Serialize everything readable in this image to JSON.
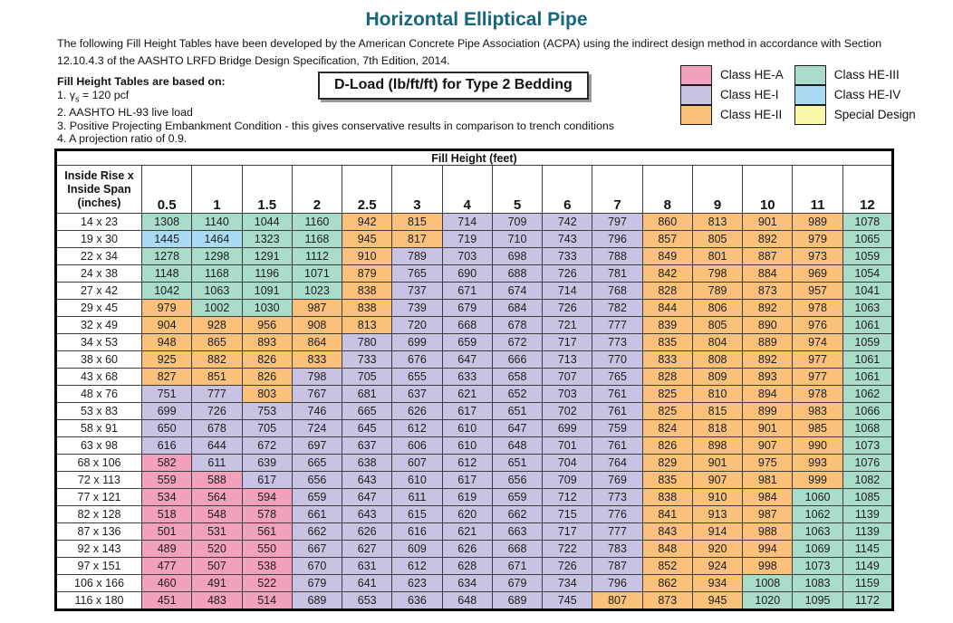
{
  "page": {
    "title": "Horizontal Elliptical Pipe",
    "intro": "The following Fill Height Tables have been developed by the American Concrete Pipe Association (ACPA) using the indirect design method in accordance with Section 12.10.4.3 of the AASHTO LRFD Bridge Design Specification, 7th Edition, 2014."
  },
  "notes": {
    "heading": "Fill Height Tables are based on:",
    "item1": {
      "pre": "1.  γ",
      "sub": "s",
      "post": " = 120 pcf"
    },
    "items": [
      "2.  AASHTO HL-93 live load",
      "3.  Positive Projecting Embankment Condition - this gives conservative results in comparison to trench conditions",
      "4.  A projection ratio of 0.9."
    ]
  },
  "dload_box": {
    "text": "D-Load (lb/ft/ft) for Type 2 Bedding"
  },
  "legend": {
    "columns": [
      [
        {
          "code": "A",
          "label": "Class HE-A"
        },
        {
          "code": "I",
          "label": "Class HE-I"
        },
        {
          "code": "II",
          "label": "Class HE-II"
        }
      ],
      [
        {
          "code": "III",
          "label": "Class HE-III"
        },
        {
          "code": "IV",
          "label": "Class HE-IV"
        },
        {
          "code": "SD",
          "label": "Special Design"
        }
      ]
    ]
  },
  "chart_data": {
    "type": "table",
    "title": "D-Load (lb/ft/ft) for Type 2 Bedding",
    "group_header": "Fill Height (feet)",
    "row_header_label": [
      "Inside Rise x",
      "Inside Span",
      "(inches)"
    ],
    "row_header_units": "inches",
    "columns": [
      "0.5",
      "1",
      "1.5",
      "2",
      "2.5",
      "3",
      "4",
      "5",
      "6",
      "7",
      "8",
      "9",
      "10",
      "11",
      "12"
    ],
    "class_map": {
      "A": "#F2A1BC",
      "I": "#C8C3E2",
      "II": "#F9C179",
      "III": "#A9DCC9",
      "IV": "#AADAF4",
      "SD": "#FBF7AA"
    },
    "rows": [
      {
        "size": "14 x 23",
        "values": [
          1308,
          1140,
          1044,
          1160,
          942,
          815,
          714,
          709,
          742,
          797,
          860,
          813,
          901,
          989,
          1078
        ],
        "classes": [
          "III",
          "III",
          "III",
          "III",
          "II",
          "II",
          "I",
          "I",
          "I",
          "I",
          "II",
          "II",
          "II",
          "II",
          "III"
        ]
      },
      {
        "size": "19 x 30",
        "values": [
          1445,
          1464,
          1323,
          1168,
          945,
          817,
          719,
          710,
          743,
          796,
          857,
          805,
          892,
          979,
          1065
        ],
        "classes": [
          "IV",
          "IV",
          "III",
          "III",
          "II",
          "II",
          "I",
          "I",
          "I",
          "I",
          "II",
          "II",
          "II",
          "II",
          "III"
        ]
      },
      {
        "size": "22 x 34",
        "values": [
          1278,
          1298,
          1291,
          1112,
          910,
          789,
          703,
          698,
          733,
          788,
          849,
          801,
          887,
          973,
          1059
        ],
        "classes": [
          "III",
          "III",
          "III",
          "III",
          "II",
          "I",
          "I",
          "I",
          "I",
          "I",
          "II",
          "II",
          "II",
          "II",
          "III"
        ]
      },
      {
        "size": "24 x 38",
        "values": [
          1148,
          1168,
          1196,
          1071,
          879,
          765,
          690,
          688,
          726,
          781,
          842,
          798,
          884,
          969,
          1054
        ],
        "classes": [
          "III",
          "III",
          "III",
          "III",
          "II",
          "I",
          "I",
          "I",
          "I",
          "I",
          "II",
          "II",
          "II",
          "II",
          "III"
        ]
      },
      {
        "size": "27 x 42",
        "values": [
          1042,
          1063,
          1091,
          1023,
          838,
          737,
          671,
          674,
          714,
          768,
          828,
          789,
          873,
          957,
          1041
        ],
        "classes": [
          "III",
          "III",
          "III",
          "III",
          "II",
          "I",
          "I",
          "I",
          "I",
          "I",
          "II",
          "II",
          "II",
          "II",
          "III"
        ]
      },
      {
        "size": "29 x 45",
        "values": [
          979,
          1002,
          1030,
          987,
          838,
          739,
          679,
          684,
          726,
          782,
          844,
          806,
          892,
          978,
          1063
        ],
        "classes": [
          "II",
          "III",
          "III",
          "II",
          "II",
          "I",
          "I",
          "I",
          "I",
          "I",
          "II",
          "II",
          "II",
          "II",
          "III"
        ]
      },
      {
        "size": "32 x 49",
        "values": [
          904,
          928,
          956,
          908,
          813,
          720,
          668,
          678,
          721,
          777,
          839,
          805,
          890,
          976,
          1061
        ],
        "classes": [
          "II",
          "II",
          "II",
          "II",
          "II",
          "I",
          "I",
          "I",
          "I",
          "I",
          "II",
          "II",
          "II",
          "II",
          "III"
        ]
      },
      {
        "size": "34 x 53",
        "values": [
          948,
          865,
          893,
          864,
          780,
          699,
          659,
          672,
          717,
          773,
          835,
          804,
          889,
          974,
          1059
        ],
        "classes": [
          "II",
          "II",
          "II",
          "II",
          "I",
          "I",
          "I",
          "I",
          "I",
          "I",
          "II",
          "II",
          "II",
          "II",
          "III"
        ]
      },
      {
        "size": "38 x 60",
        "values": [
          925,
          882,
          826,
          833,
          733,
          676,
          647,
          666,
          713,
          770,
          833,
          808,
          892,
          977,
          1061
        ],
        "classes": [
          "II",
          "II",
          "II",
          "II",
          "I",
          "I",
          "I",
          "I",
          "I",
          "I",
          "II",
          "II",
          "II",
          "II",
          "III"
        ]
      },
      {
        "size": "43 x 68",
        "values": [
          827,
          851,
          826,
          798,
          705,
          655,
          633,
          658,
          707,
          765,
          828,
          809,
          893,
          977,
          1061
        ],
        "classes": [
          "II",
          "II",
          "II",
          "I",
          "I",
          "I",
          "I",
          "I",
          "I",
          "I",
          "II",
          "II",
          "II",
          "II",
          "III"
        ]
      },
      {
        "size": "48 x 76",
        "values": [
          751,
          777,
          803,
          767,
          681,
          637,
          621,
          652,
          703,
          761,
          825,
          810,
          894,
          978,
          1062
        ],
        "classes": [
          "I",
          "I",
          "II",
          "I",
          "I",
          "I",
          "I",
          "I",
          "I",
          "I",
          "II",
          "II",
          "II",
          "II",
          "III"
        ]
      },
      {
        "size": "53 x 83",
        "values": [
          699,
          726,
          753,
          746,
          665,
          626,
          617,
          651,
          702,
          761,
          825,
          815,
          899,
          983,
          1066
        ],
        "classes": [
          "I",
          "I",
          "I",
          "I",
          "I",
          "I",
          "I",
          "I",
          "I",
          "I",
          "II",
          "II",
          "II",
          "II",
          "III"
        ]
      },
      {
        "size": "58 x 91",
        "values": [
          650,
          678,
          705,
          724,
          645,
          612,
          610,
          647,
          699,
          759,
          824,
          818,
          901,
          985,
          1068
        ],
        "classes": [
          "I",
          "I",
          "I",
          "I",
          "I",
          "I",
          "I",
          "I",
          "I",
          "I",
          "II",
          "II",
          "II",
          "II",
          "III"
        ]
      },
      {
        "size": "63 x 98",
        "values": [
          616,
          644,
          672,
          697,
          637,
          606,
          610,
          648,
          701,
          761,
          826,
          898,
          907,
          990,
          1073
        ],
        "classes": [
          "I",
          "I",
          "I",
          "I",
          "I",
          "I",
          "I",
          "I",
          "I",
          "I",
          "II",
          "II",
          "II",
          "II",
          "III"
        ]
      },
      {
        "size": "68 x 106",
        "values": [
          582,
          611,
          639,
          665,
          638,
          607,
          612,
          651,
          704,
          764,
          829,
          901,
          975,
          993,
          1076
        ],
        "classes": [
          "A",
          "I",
          "I",
          "I",
          "I",
          "I",
          "I",
          "I",
          "I",
          "I",
          "II",
          "II",
          "II",
          "II",
          "III"
        ]
      },
      {
        "size": "72 x 113",
        "values": [
          559,
          588,
          617,
          656,
          643,
          610,
          617,
          656,
          709,
          769,
          835,
          907,
          981,
          999,
          1082
        ],
        "classes": [
          "A",
          "A",
          "I",
          "I",
          "I",
          "I",
          "I",
          "I",
          "I",
          "I",
          "II",
          "II",
          "II",
          "II",
          "III"
        ]
      },
      {
        "size": "77 x 121",
        "values": [
          534,
          564,
          594,
          659,
          647,
          611,
          619,
          659,
          712,
          773,
          838,
          910,
          984,
          1060,
          1085
        ],
        "classes": [
          "A",
          "A",
          "A",
          "I",
          "I",
          "I",
          "I",
          "I",
          "I",
          "I",
          "II",
          "II",
          "II",
          "III",
          "III"
        ]
      },
      {
        "size": "82 x 128",
        "values": [
          518,
          548,
          578,
          661,
          643,
          615,
          620,
          662,
          715,
          776,
          841,
          913,
          987,
          1062,
          1139
        ],
        "classes": [
          "A",
          "A",
          "A",
          "I",
          "I",
          "I",
          "I",
          "I",
          "I",
          "I",
          "II",
          "II",
          "II",
          "III",
          "III"
        ]
      },
      {
        "size": "87 x 136",
        "values": [
          501,
          531,
          561,
          662,
          626,
          616,
          621,
          663,
          717,
          777,
          843,
          914,
          988,
          1063,
          1139
        ],
        "classes": [
          "A",
          "A",
          "A",
          "I",
          "I",
          "I",
          "I",
          "I",
          "I",
          "I",
          "II",
          "II",
          "II",
          "III",
          "III"
        ]
      },
      {
        "size": "92 x 143",
        "values": [
          489,
          520,
          550,
          667,
          627,
          609,
          626,
          668,
          722,
          783,
          848,
          920,
          994,
          1069,
          1145
        ],
        "classes": [
          "A",
          "A",
          "A",
          "I",
          "I",
          "I",
          "I",
          "I",
          "I",
          "I",
          "II",
          "II",
          "II",
          "III",
          "III"
        ]
      },
      {
        "size": "97 x 151",
        "values": [
          477,
          507,
          538,
          670,
          631,
          612,
          628,
          671,
          726,
          787,
          852,
          924,
          998,
          1073,
          1149
        ],
        "classes": [
          "A",
          "A",
          "A",
          "I",
          "I",
          "I",
          "I",
          "I",
          "I",
          "I",
          "II",
          "II",
          "II",
          "III",
          "III"
        ]
      },
      {
        "size": "106 x 166",
        "values": [
          460,
          491,
          522,
          679,
          641,
          623,
          634,
          679,
          734,
          796,
          862,
          934,
          1008,
          1083,
          1159
        ],
        "classes": [
          "A",
          "A",
          "A",
          "I",
          "I",
          "I",
          "I",
          "I",
          "I",
          "I",
          "II",
          "II",
          "III",
          "III",
          "III"
        ]
      },
      {
        "size": "116 x 180",
        "values": [
          451,
          483,
          514,
          689,
          653,
          636,
          648,
          689,
          745,
          807,
          873,
          945,
          1020,
          1095,
          1172
        ],
        "classes": [
          "A",
          "A",
          "A",
          "I",
          "I",
          "I",
          "I",
          "I",
          "I",
          "II",
          "II",
          "II",
          "III",
          "III",
          "III"
        ]
      }
    ]
  }
}
